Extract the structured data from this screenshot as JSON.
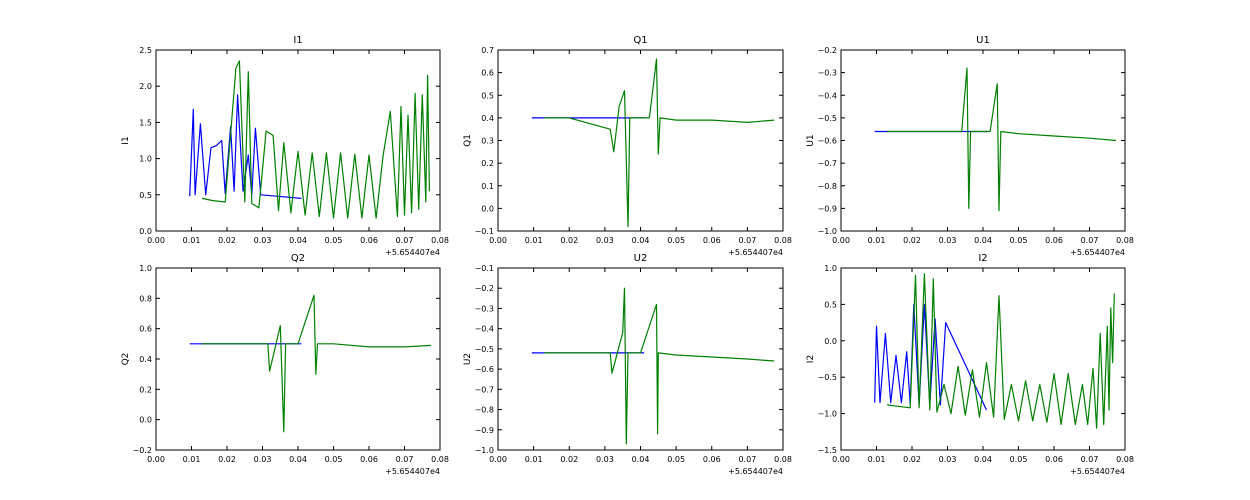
{
  "chart_data": [
    {
      "type": "line",
      "title": "I1",
      "ylabel": "I1",
      "xlim": [
        0.0,
        0.08
      ],
      "ylim": [
        0.0,
        2.5
      ],
      "xticks": [
        "0.00",
        "0.01",
        "0.02",
        "0.03",
        "0.04",
        "0.05",
        "0.06",
        "0.07",
        "0.08"
      ],
      "yticks": [
        "0.0",
        "0.5",
        "1.0",
        "1.5",
        "2.0",
        "2.5"
      ],
      "x_offset_label": "+5.654407e4",
      "grid": false,
      "series": [
        {
          "color": "#0000ff",
          "x": [
            0.0095,
            0.0105,
            0.011,
            0.0125,
            0.014,
            0.0155,
            0.017,
            0.0185,
            0.0195,
            0.021,
            0.022,
            0.023,
            0.0245,
            0.026,
            0.027,
            0.028,
            0.0295,
            0.041
          ],
          "y": [
            0.48,
            1.68,
            0.5,
            1.48,
            0.5,
            1.15,
            1.18,
            1.25,
            0.52,
            1.44,
            0.55,
            1.88,
            0.55,
            1.05,
            0.5,
            1.42,
            0.5,
            0.45
          ]
        },
        {
          "color": "#008000",
          "x": [
            0.013,
            0.016,
            0.0195,
            0.0225,
            0.0235,
            0.025,
            0.026,
            0.027,
            0.029,
            0.031,
            0.033,
            0.0345,
            0.036,
            0.038,
            0.04,
            0.042,
            0.044,
            0.046,
            0.048,
            0.05,
            0.052,
            0.054,
            0.056,
            0.058,
            0.06,
            0.062,
            0.064,
            0.066,
            0.068,
            0.069,
            0.07,
            0.071,
            0.072,
            0.073,
            0.074,
            0.075,
            0.076,
            0.0765,
            0.077
          ],
          "y": [
            0.45,
            0.42,
            0.4,
            2.25,
            2.35,
            0.4,
            2.2,
            0.38,
            0.32,
            1.38,
            1.32,
            0.28,
            1.22,
            0.25,
            1.1,
            0.22,
            1.08,
            0.2,
            1.08,
            0.18,
            1.08,
            0.18,
            1.06,
            0.18,
            1.05,
            0.18,
            1.05,
            1.65,
            0.2,
            1.72,
            0.22,
            1.6,
            0.25,
            1.9,
            0.3,
            1.88,
            0.4,
            2.15,
            0.55
          ]
        }
      ]
    },
    {
      "type": "line",
      "title": "Q1",
      "ylabel": "Q1",
      "xlim": [
        0.0,
        0.08
      ],
      "ylim": [
        -0.1,
        0.7
      ],
      "xticks": [
        "0.00",
        "0.01",
        "0.02",
        "0.03",
        "0.04",
        "0.05",
        "0.06",
        "0.07",
        "0.08"
      ],
      "yticks": [
        "−0.1",
        "0.0",
        "0.1",
        "0.2",
        "0.3",
        "0.4",
        "0.5",
        "0.6",
        "0.7"
      ],
      "x_offset_label": "+5.654407e4",
      "grid": false,
      "series": [
        {
          "color": "#0000ff",
          "x": [
            0.0095,
            0.012,
            0.015,
            0.018,
            0.021,
            0.024,
            0.027,
            0.03,
            0.0415
          ],
          "y": [
            0.4,
            0.4,
            0.4,
            0.4,
            0.4,
            0.4,
            0.4,
            0.4,
            0.4
          ]
        },
        {
          "color": "#008000",
          "x": [
            0.013,
            0.02,
            0.0315,
            0.0325,
            0.034,
            0.0355,
            0.0365,
            0.037,
            0.039,
            0.0425,
            0.0445,
            0.045,
            0.0455,
            0.05,
            0.06,
            0.07,
            0.0775
          ],
          "y": [
            0.4,
            0.4,
            0.35,
            0.25,
            0.45,
            0.52,
            -0.08,
            0.4,
            0.4,
            0.4,
            0.66,
            0.24,
            0.4,
            0.39,
            0.39,
            0.38,
            0.39
          ]
        }
      ]
    },
    {
      "type": "line",
      "title": "U1",
      "ylabel": "U1",
      "xlim": [
        0.0,
        0.08
      ],
      "ylim": [
        -1.0,
        -0.2
      ],
      "xticks": [
        "0.00",
        "0.01",
        "0.02",
        "0.03",
        "0.04",
        "0.05",
        "0.06",
        "0.07",
        "0.08"
      ],
      "yticks": [
        "−1.0",
        "−0.9",
        "−0.8",
        "−0.7",
        "−0.6",
        "−0.5",
        "−0.4",
        "−0.3",
        "−0.2"
      ],
      "x_offset_label": "+5.654407e4",
      "grid": false,
      "series": [
        {
          "color": "#0000ff",
          "x": [
            0.0095,
            0.012,
            0.015,
            0.018,
            0.021,
            0.024,
            0.027,
            0.03,
            0.041
          ],
          "y": [
            -0.56,
            -0.56,
            -0.56,
            -0.56,
            -0.56,
            -0.56,
            -0.56,
            -0.56,
            -0.56
          ]
        },
        {
          "color": "#008000",
          "x": [
            0.013,
            0.02,
            0.028,
            0.034,
            0.0355,
            0.036,
            0.0365,
            0.037,
            0.039,
            0.042,
            0.044,
            0.0445,
            0.045,
            0.05,
            0.06,
            0.07,
            0.0775
          ],
          "y": [
            -0.56,
            -0.56,
            -0.56,
            -0.56,
            -0.28,
            -0.9,
            -0.56,
            -0.56,
            -0.56,
            -0.56,
            -0.35,
            -0.91,
            -0.56,
            -0.57,
            -0.58,
            -0.59,
            -0.6
          ]
        }
      ]
    },
    {
      "type": "line",
      "title": "Q2",
      "ylabel": "Q2",
      "xlim": [
        0.0,
        0.08
      ],
      "ylim": [
        -0.2,
        1.0
      ],
      "xticks": [
        "0.00",
        "0.01",
        "0.02",
        "0.03",
        "0.04",
        "0.05",
        "0.06",
        "0.07",
        "0.08"
      ],
      "yticks": [
        "−0.2",
        "0.0",
        "0.2",
        "0.4",
        "0.6",
        "0.8",
        "1.0"
      ],
      "x_offset_label": "+5.654407e4",
      "grid": false,
      "series": [
        {
          "color": "#0000ff",
          "x": [
            0.0095,
            0.012,
            0.015,
            0.018,
            0.021,
            0.024,
            0.027,
            0.03,
            0.041
          ],
          "y": [
            0.5,
            0.5,
            0.5,
            0.5,
            0.5,
            0.5,
            0.5,
            0.5,
            0.5
          ]
        },
        {
          "color": "#008000",
          "x": [
            0.013,
            0.02,
            0.0315,
            0.032,
            0.035,
            0.036,
            0.0365,
            0.037,
            0.04,
            0.0445,
            0.045,
            0.0455,
            0.05,
            0.06,
            0.07,
            0.0775
          ],
          "y": [
            0.5,
            0.5,
            0.5,
            0.32,
            0.62,
            -0.08,
            0.5,
            0.5,
            0.5,
            0.82,
            0.3,
            0.5,
            0.5,
            0.48,
            0.48,
            0.49
          ]
        }
      ]
    },
    {
      "type": "line",
      "title": "U2",
      "ylabel": "U2",
      "xlim": [
        0.0,
        0.08
      ],
      "ylim": [
        -1.0,
        -0.1
      ],
      "xticks": [
        "0.00",
        "0.01",
        "0.02",
        "0.03",
        "0.04",
        "0.05",
        "0.06",
        "0.07",
        "0.08"
      ],
      "yticks": [
        "−1.0",
        "−0.9",
        "−0.8",
        "−0.7",
        "−0.6",
        "−0.5",
        "−0.4",
        "−0.3",
        "−0.2",
        "−0.1"
      ],
      "x_offset_label": "+5.654407e4",
      "grid": false,
      "series": [
        {
          "color": "#0000ff",
          "x": [
            0.0095,
            0.012,
            0.015,
            0.018,
            0.021,
            0.024,
            0.027,
            0.03,
            0.041
          ],
          "y": [
            -0.52,
            -0.52,
            -0.52,
            -0.52,
            -0.52,
            -0.52,
            -0.52,
            -0.52,
            -0.52
          ]
        },
        {
          "color": "#008000",
          "x": [
            0.013,
            0.02,
            0.0315,
            0.032,
            0.035,
            0.0355,
            0.036,
            0.0365,
            0.04,
            0.0445,
            0.0448,
            0.045,
            0.05,
            0.06,
            0.07,
            0.0775
          ],
          "y": [
            -0.52,
            -0.52,
            -0.52,
            -0.62,
            -0.42,
            -0.2,
            -0.97,
            -0.52,
            -0.52,
            -0.28,
            -0.92,
            -0.52,
            -0.53,
            -0.54,
            -0.55,
            -0.56
          ]
        }
      ]
    },
    {
      "type": "line",
      "title": "I2",
      "ylabel": "I2",
      "xlim": [
        0.0,
        0.08
      ],
      "ylim": [
        -1.5,
        1.0
      ],
      "xticks": [
        "0.00",
        "0.01",
        "0.02",
        "0.03",
        "0.04",
        "0.05",
        "0.06",
        "0.07",
        "0.08"
      ],
      "yticks": [
        "−1.5",
        "−1.0",
        "−0.5",
        "0.0",
        "0.5",
        "1.0"
      ],
      "x_offset_label": "+5.654407e4",
      "grid": false,
      "series": [
        {
          "color": "#0000ff",
          "x": [
            0.0095,
            0.01,
            0.011,
            0.0125,
            0.014,
            0.0155,
            0.017,
            0.0185,
            0.0195,
            0.0205,
            0.022,
            0.0235,
            0.025,
            0.0265,
            0.028,
            0.0295,
            0.041
          ],
          "y": [
            -0.85,
            0.2,
            -0.85,
            0.1,
            -0.85,
            -0.2,
            -0.85,
            -0.15,
            -0.87,
            0.5,
            -0.88,
            0.5,
            -0.88,
            0.3,
            -0.88,
            0.25,
            -0.95
          ]
        },
        {
          "color": "#008000",
          "x": [
            0.013,
            0.016,
            0.0195,
            0.021,
            0.022,
            0.0235,
            0.025,
            0.026,
            0.027,
            0.029,
            0.031,
            0.033,
            0.035,
            0.037,
            0.039,
            0.041,
            0.043,
            0.0445,
            0.046,
            0.048,
            0.05,
            0.052,
            0.054,
            0.056,
            0.058,
            0.06,
            0.062,
            0.064,
            0.066,
            0.068,
            0.0695,
            0.071,
            0.072,
            0.073,
            0.074,
            0.075,
            0.0755,
            0.076,
            0.0765,
            0.077
          ],
          "y": [
            -0.88,
            -0.9,
            -0.92,
            0.9,
            -0.92,
            0.92,
            -0.95,
            0.85,
            -0.98,
            -0.6,
            -1.0,
            -0.35,
            -1.02,
            -0.4,
            -1.05,
            -0.3,
            -1.05,
            0.62,
            -1.08,
            -0.6,
            -1.1,
            -0.55,
            -1.1,
            -0.6,
            -1.12,
            -0.45,
            -1.15,
            -0.45,
            -1.15,
            -0.6,
            -1.15,
            -0.38,
            -1.2,
            0.1,
            -1.15,
            0.2,
            -0.95,
            0.45,
            -0.3,
            0.65
          ]
        }
      ]
    }
  ]
}
